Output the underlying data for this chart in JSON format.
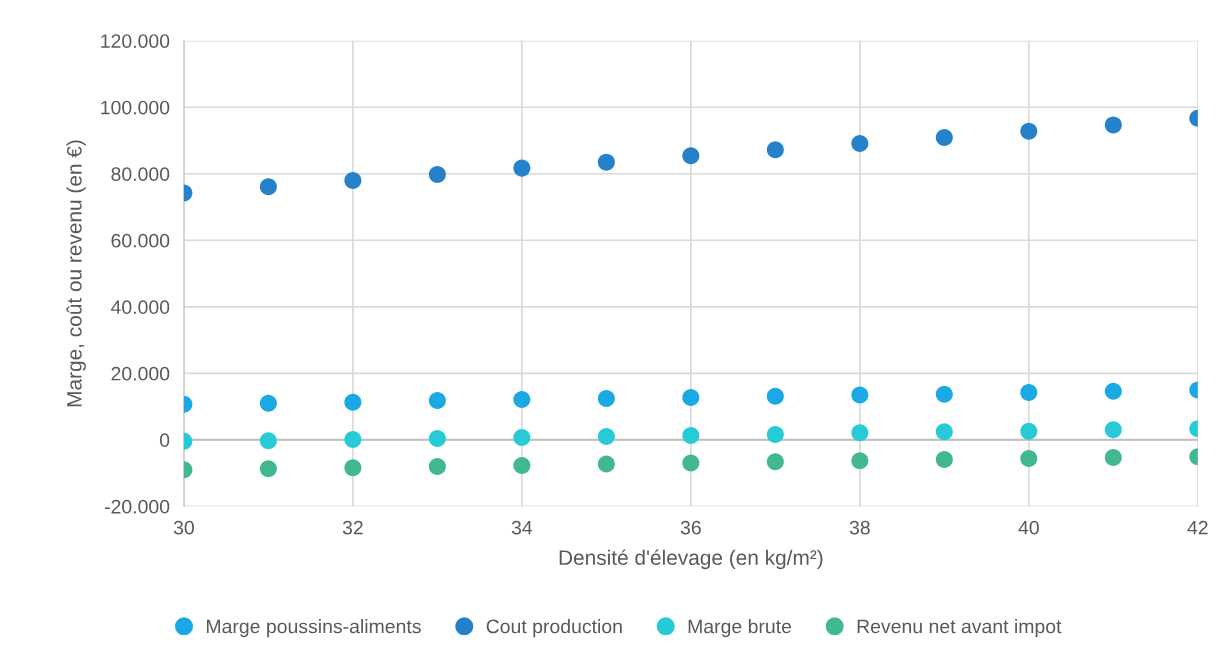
{
  "chart_data": {
    "type": "scatter",
    "xlabel": "Densité d'élevage (en kg/m²)",
    "ylabel": "Marge, coût ou revenu (en €)",
    "x": [
      30,
      31,
      32,
      33,
      34,
      35,
      36,
      37,
      38,
      39,
      40,
      41,
      42
    ],
    "series": [
      {
        "name": "Marge poussins-aliments",
        "color": "#1aa9e4",
        "values": [
          10700,
          11000,
          11300,
          11800,
          12100,
          12400,
          12700,
          13100,
          13500,
          13700,
          14200,
          14600,
          15000
        ]
      },
      {
        "name": "Cout production",
        "color": "#2581c9",
        "values": [
          74200,
          76100,
          78000,
          79800,
          81700,
          83500,
          85400,
          87200,
          89100,
          90900,
          92800,
          94700,
          96700
        ]
      },
      {
        "name": "Marge brute",
        "color": "#27cbd7",
        "values": [
          -400,
          -300,
          100,
          400,
          700,
          1000,
          1300,
          1600,
          2100,
          2400,
          2600,
          3000,
          3300
        ]
      },
      {
        "name": "Revenu net avant impot",
        "color": "#41b890",
        "values": [
          -9000,
          -8700,
          -8400,
          -8000,
          -7700,
          -7300,
          -7000,
          -6600,
          -6300,
          -5900,
          -5600,
          -5300,
          -5100
        ]
      }
    ],
    "xlim": [
      30,
      42
    ],
    "xticks": [
      30,
      32,
      34,
      36,
      38,
      40,
      42
    ],
    "ylim": [
      -20000,
      120000
    ],
    "yticks": [
      {
        "value": -20000,
        "label": "-20.000"
      },
      {
        "value": 0,
        "label": "0"
      },
      {
        "value": 20000,
        "label": "20.000"
      },
      {
        "value": 40000,
        "label": "40.000"
      },
      {
        "value": 60000,
        "label": "60.000"
      },
      {
        "value": 80000,
        "label": "80.000"
      },
      {
        "value": 100000,
        "label": "100.000"
      },
      {
        "value": 120000,
        "label": "120.000"
      }
    ],
    "grid": true,
    "legend": "bottom",
    "marker": "circle"
  }
}
